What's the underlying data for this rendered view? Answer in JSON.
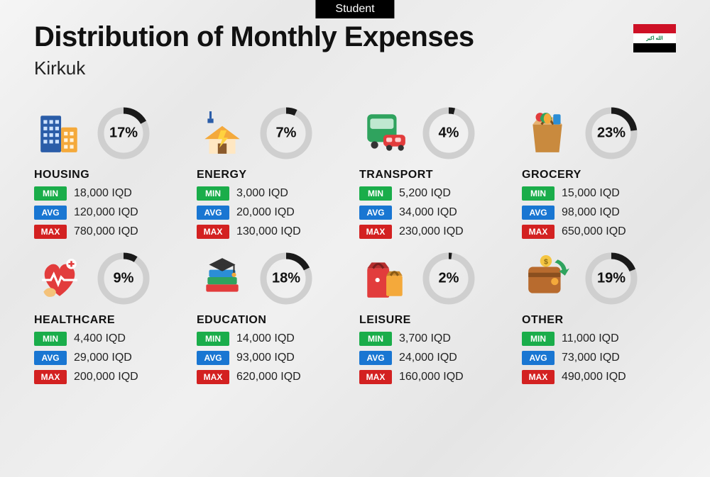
{
  "badge": "Student",
  "title": "Distribution of Monthly Expenses",
  "subtitle": "Kirkuk",
  "currency": "IQD",
  "labels": {
    "min": "MIN",
    "avg": "AVG",
    "max": "MAX"
  },
  "colors": {
    "min": "#1aad4a",
    "avg": "#1976d2",
    "max": "#d32121",
    "donut_fg": "#1a1a1a",
    "donut_bg": "#cfcfcf"
  },
  "donut": {
    "radius": 32,
    "stroke": 9
  },
  "flag": {
    "top": "#ce1126",
    "middle": "#ffffff",
    "bottom": "#000000",
    "script_color": "#007a3d",
    "script": "الله اكبر"
  },
  "categories": [
    {
      "key": "housing",
      "name": "HOUSING",
      "percent": 17,
      "min": "18,000",
      "avg": "120,000",
      "max": "780,000"
    },
    {
      "key": "energy",
      "name": "ENERGY",
      "percent": 7,
      "min": "3,000",
      "avg": "20,000",
      "max": "130,000"
    },
    {
      "key": "transport",
      "name": "TRANSPORT",
      "percent": 4,
      "min": "5,200",
      "avg": "34,000",
      "max": "230,000"
    },
    {
      "key": "grocery",
      "name": "GROCERY",
      "percent": 23,
      "min": "15,000",
      "avg": "98,000",
      "max": "650,000"
    },
    {
      "key": "healthcare",
      "name": "HEALTHCARE",
      "percent": 9,
      "min": "4,400",
      "avg": "29,000",
      "max": "200,000"
    },
    {
      "key": "education",
      "name": "EDUCATION",
      "percent": 18,
      "min": "14,000",
      "avg": "93,000",
      "max": "620,000"
    },
    {
      "key": "leisure",
      "name": "LEISURE",
      "percent": 2,
      "min": "3,700",
      "avg": "24,000",
      "max": "160,000"
    },
    {
      "key": "other",
      "name": "OTHER",
      "percent": 19,
      "min": "11,000",
      "avg": "73,000",
      "max": "490,000"
    }
  ]
}
